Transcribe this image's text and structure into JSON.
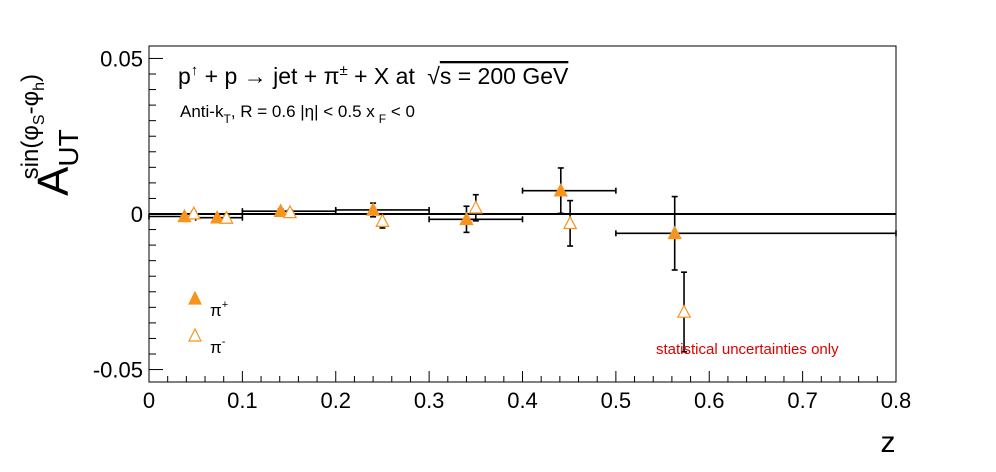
{
  "chart_data": {
    "type": "scatter",
    "title": "p↑ + p → jet + π± + X at √s = 200 GeV",
    "title_parts": {
      "p": "p",
      "up_arrow": "↑",
      "plus_p_arrow_jet": " + p → jet + ",
      "pi": "π",
      "pm": "±",
      "plus_x_at": " + X at ",
      "sqrt": "√",
      "s_eq": "s = 200 GeV"
    },
    "subtitle_parts": {
      "anti_k": "Anti-k",
      "k_sub": "T",
      "r_eta": ", R = 0.6   |η| < 0.5   x",
      "x_sub": "F",
      "lt_zero": " < 0"
    },
    "xlabel": "z",
    "ylabel_parts": {
      "A": "A",
      "sub": "UT",
      "sup_sin": "sin(φ",
      "sup_S": "S",
      "sup_mid": "-φ",
      "sup_h": "h",
      "sup_close": ")"
    },
    "xlim": [
      0,
      0.8
    ],
    "ylim": [
      -0.054,
      0.054
    ],
    "x_ticks": [
      "0",
      "0.1",
      "0.2",
      "0.3",
      "0.4",
      "0.5",
      "0.6",
      "0.7",
      "0.8"
    ],
    "x_tick_values": [
      0,
      0.1,
      0.2,
      0.3,
      0.4,
      0.5,
      0.6,
      0.7,
      0.8
    ],
    "y_ticks": [
      "-0.05",
      "0",
      "0.05"
    ],
    "y_tick_values": [
      -0.05,
      0,
      0.05
    ],
    "zero_line": true,
    "grid": false,
    "legend_position": "bottom-left",
    "series": [
      {
        "name": "π⁺",
        "legend": {
          "base": "π",
          "sup": "+"
        },
        "marker": "filled-triangle",
        "color": "#f7941d",
        "points": [
          {
            "x": 0.038,
            "y": -0.0008,
            "yerr": 0.0007,
            "xlo": 0.0,
            "xhi": 0.05
          },
          {
            "x": 0.073,
            "y": -0.0012,
            "yerr": 0.0007,
            "xlo": 0.05,
            "xhi": 0.1
          },
          {
            "x": 0.141,
            "y": 0.0009,
            "yerr": 0.0007,
            "xlo": 0.1,
            "xhi": 0.2
          },
          {
            "x": 0.24,
            "y": 0.0013,
            "yerr": 0.0022,
            "xlo": 0.2,
            "xhi": 0.3
          },
          {
            "x": 0.34,
            "y": -0.0017,
            "yerr": 0.0042,
            "xlo": 0.3,
            "xhi": 0.4
          },
          {
            "x": 0.441,
            "y": 0.0075,
            "yerr": 0.0073,
            "xlo": 0.4,
            "xhi": 0.5
          },
          {
            "x": 0.563,
            "y": -0.0062,
            "yerr": 0.0118,
            "xlo": 0.5,
            "xhi": 0.8
          }
        ]
      },
      {
        "name": "π⁻",
        "legend": {
          "base": "π",
          "sup": "-"
        },
        "marker": "open-triangle",
        "color": "#f7941d",
        "points": [
          {
            "x": 0.048,
            "y": 0.0001,
            "yerr": 0.0007
          },
          {
            "x": 0.083,
            "y": -0.0013,
            "yerr": 0.0007
          },
          {
            "x": 0.151,
            "y": 0.0005,
            "yerr": 0.0007
          },
          {
            "x": 0.25,
            "y": -0.0023,
            "yerr": 0.0022
          },
          {
            "x": 0.35,
            "y": 0.002,
            "yerr": 0.0042
          },
          {
            "x": 0.451,
            "y": -0.003,
            "yerr": 0.0073
          },
          {
            "x": 0.573,
            "y": -0.0315,
            "yerr": 0.0128
          }
        ]
      }
    ],
    "annotation": "statistical uncertainties only",
    "annotation_color": "#e00000"
  }
}
